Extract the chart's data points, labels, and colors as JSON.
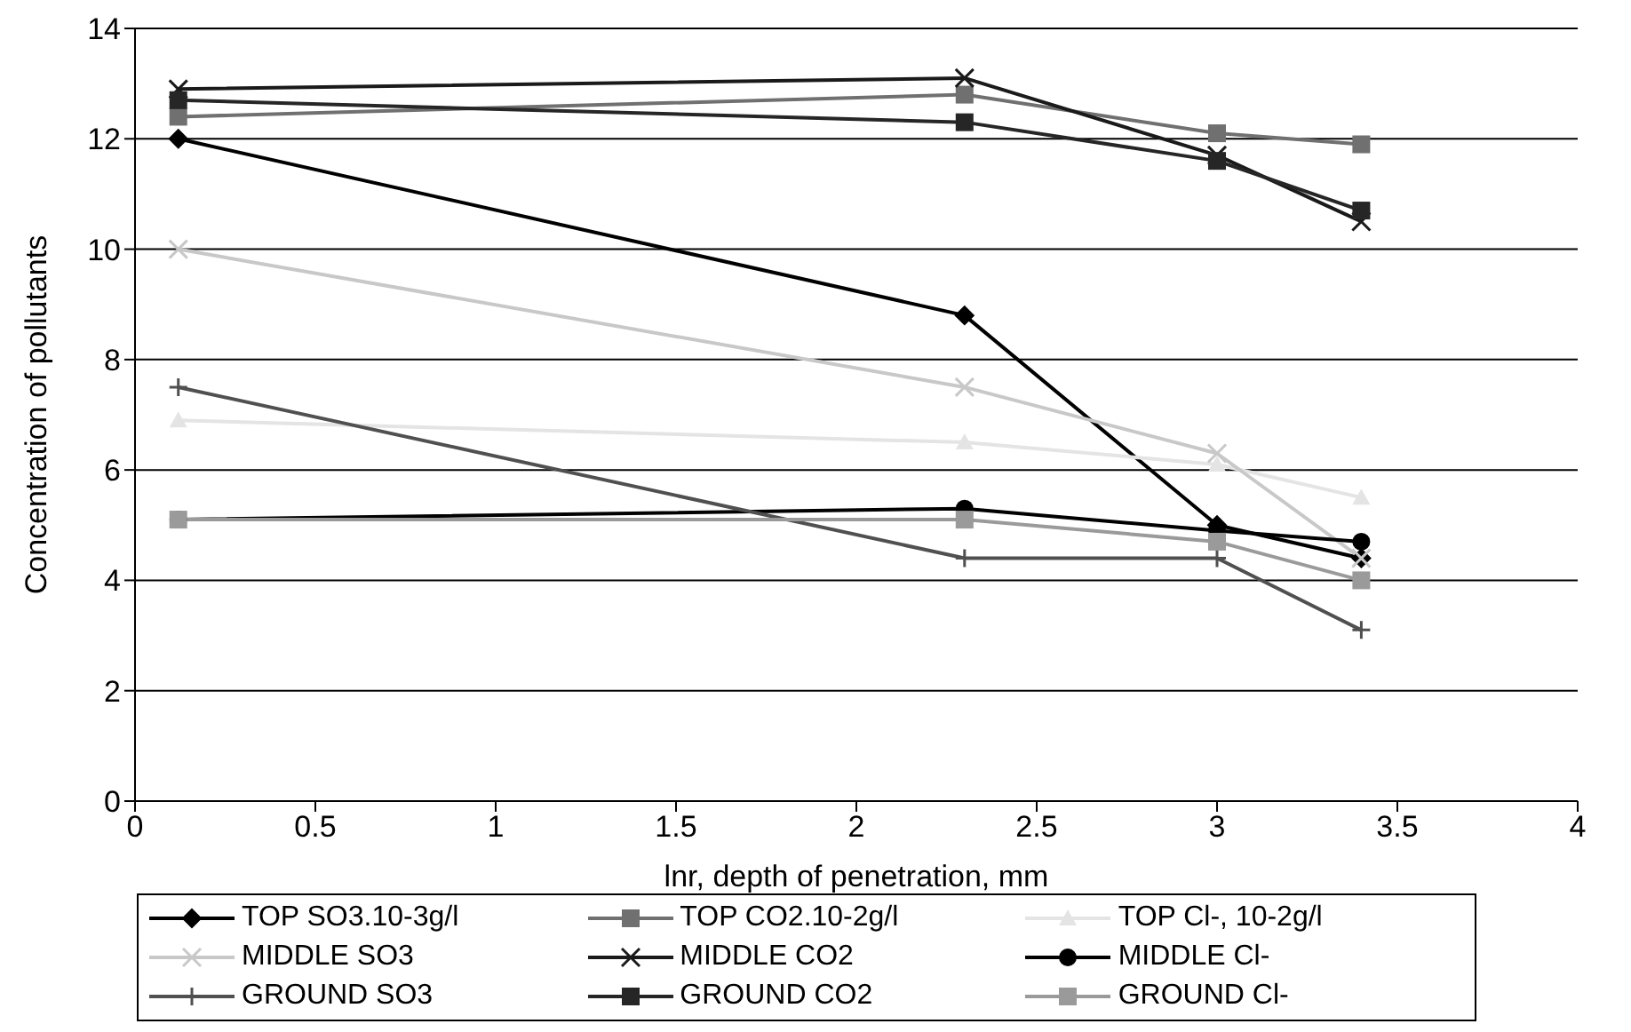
{
  "chart_data": {
    "type": "line",
    "xlabel": "lnr, depth of penetration, mm",
    "ylabel": "Concentration of pollutants",
    "x": [
      0.12,
      2.3,
      3,
      3.4
    ],
    "series": [
      {
        "name": "TOP SO3.10-3g/l",
        "color": "#000000",
        "marker": "diamond",
        "values": [
          12,
          8.8,
          5.0,
          4.4
        ]
      },
      {
        "name": "TOP CO2.10-2g/l",
        "color": "#707070",
        "marker": "square",
        "values": [
          12.4,
          12.8,
          12.1,
          11.9
        ]
      },
      {
        "name": "TOP Cl-, 10-2g/l",
        "color": "#e4e4e4",
        "marker": "triangle",
        "values": [
          6.9,
          6.5,
          6.1,
          5.5
        ]
      },
      {
        "name": "MIDDLE SO3",
        "color": "#c8c8c8",
        "marker": "cross",
        "values": [
          10,
          7.5,
          6.3,
          4.4
        ]
      },
      {
        "name": "MIDDLE CO2",
        "color": "#1a1a1a",
        "marker": "cross",
        "values": [
          12.9,
          13.1,
          11.7,
          10.5
        ]
      },
      {
        "name": "MIDDLE Cl-",
        "color": "#000000",
        "marker": "circle",
        "values": [
          5.1,
          5.3,
          4.9,
          4.7
        ]
      },
      {
        "name": "GROUND SO3",
        "color": "#505050",
        "marker": "plus",
        "values": [
          7.5,
          4.4,
          4.4,
          3.1
        ]
      },
      {
        "name": "GROUND CO2",
        "color": "#262626",
        "marker": "square",
        "values": [
          12.7,
          12.3,
          11.6,
          10.7
        ]
      },
      {
        "name": "GROUND Cl-",
        "color": "#9a9a9a",
        "marker": "square",
        "values": [
          5.1,
          5.1,
          4.7,
          4.0
        ]
      }
    ],
    "xlim": [
      0,
      4
    ],
    "xticks": [
      0,
      0.5,
      1,
      1.5,
      2,
      2.5,
      3,
      3.5,
      4
    ],
    "ylim": [
      0,
      14
    ],
    "yticks": [
      0,
      2,
      4,
      6,
      8,
      10,
      12,
      14
    ],
    "grid": "y",
    "legend": "bottom",
    "line_style": "solid"
  }
}
